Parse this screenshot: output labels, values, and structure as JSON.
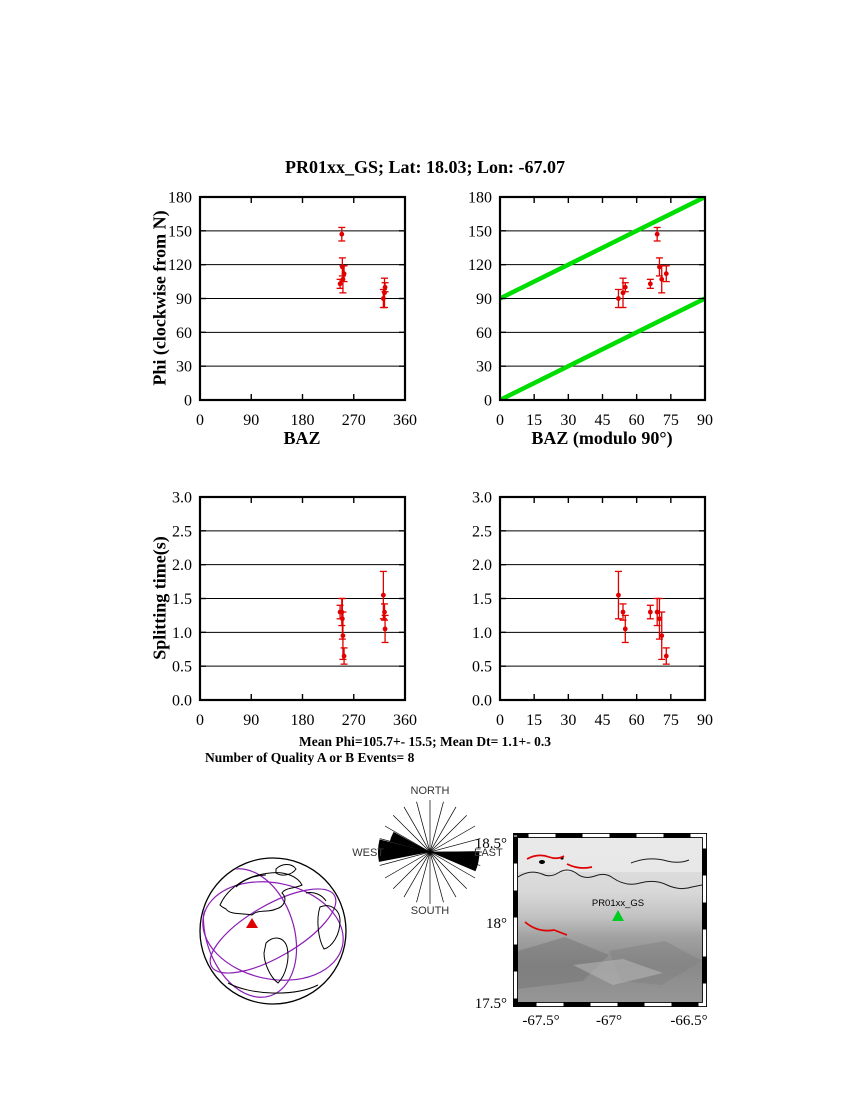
{
  "title": "PR01xx_GS; Lat: 18.03; Lon: -67.07",
  "stats": {
    "line1": "Mean Phi=105.7+- 15.5; Mean Dt= 1.1+- 0.3",
    "line2": "Number of Quality A or B Events= 8"
  },
  "colors": {
    "data_points": "#e00000",
    "reference_line": "#00dd00",
    "station_marker": "#00cc22",
    "plate_boundary": "#8a1fb4"
  },
  "chart_data": {
    "type": "scatter",
    "station": "PR01xx_GS",
    "lat": "18.03",
    "lon": "-67.07",
    "events": [
      {
        "baz": 249,
        "phi": 147,
        "phi_err": 6,
        "dt": 1.3,
        "dt_err": 0.2
      },
      {
        "baz": 250,
        "phi": 118,
        "phi_err": 8,
        "dt": 1.2,
        "dt_err": 0.3
      },
      {
        "baz": 251,
        "phi": 107,
        "phi_err": 12,
        "dt": 0.95,
        "dt_err": 0.35
      },
      {
        "baz": 253,
        "phi": 112,
        "phi_err": 7,
        "dt": 0.65,
        "dt_err": 0.12
      },
      {
        "baz": 246,
        "phi": 103,
        "phi_err": 4,
        "dt": 1.3,
        "dt_err": 0.1
      },
      {
        "baz": 322,
        "phi": 90,
        "phi_err": 8,
        "dt": 1.55,
        "dt_err": 0.35
      },
      {
        "baz": 324,
        "phi": 95,
        "phi_err": 13,
        "dt": 1.3,
        "dt_err": 0.12
      },
      {
        "baz": 325,
        "phi": 100,
        "phi_err": 4,
        "dt": 1.05,
        "dt_err": 0.2
      }
    ],
    "plots": [
      {
        "id": "phi-vs-baz",
        "xlabel": "BAZ",
        "ylabel": "Phi (clockwise from N)",
        "xlim": [
          0,
          360
        ],
        "ylim": [
          0,
          180
        ],
        "xticks": [
          0,
          90,
          180,
          270,
          360
        ],
        "xtick_labels": [
          "0",
          "90",
          "180",
          "270",
          "360"
        ],
        "yticks": [
          0,
          30,
          60,
          90,
          120,
          150,
          180
        ],
        "ytick_labels": [
          "0",
          "30",
          "60",
          "90",
          "120",
          "150",
          "180"
        ],
        "points": [
          [
            249,
            147,
            6
          ],
          [
            250,
            118,
            8
          ],
          [
            251,
            107,
            12
          ],
          [
            253,
            112,
            7
          ],
          [
            246,
            103,
            4
          ],
          [
            322,
            90,
            8
          ],
          [
            324,
            95,
            13
          ],
          [
            325,
            100,
            4
          ]
        ]
      },
      {
        "id": "phi-vs-bazmod90",
        "xlabel": "BAZ (modulo 90°)",
        "ylabel": "",
        "xlim": [
          0,
          90
        ],
        "ylim": [
          0,
          180
        ],
        "xticks": [
          0,
          15,
          30,
          45,
          60,
          75,
          90
        ],
        "xtick_labels": [
          "0",
          "15",
          "30",
          "45",
          "60",
          "75",
          "90"
        ],
        "yticks": [
          0,
          30,
          60,
          90,
          120,
          150,
          180
        ],
        "ytick_labels": [
          "0",
          "30",
          "60",
          "90",
          "120",
          "150",
          "180"
        ],
        "green_lines": [
          [
            0,
            0,
            90,
            90
          ],
          [
            0,
            90,
            90,
            180
          ]
        ],
        "points": [
          [
            69,
            147,
            6
          ],
          [
            70,
            118,
            8
          ],
          [
            71,
            107,
            12
          ],
          [
            73,
            112,
            7
          ],
          [
            66,
            103,
            4
          ],
          [
            52,
            90,
            8
          ],
          [
            54,
            95,
            13
          ],
          [
            55,
            100,
            4
          ]
        ]
      },
      {
        "id": "dt-vs-baz",
        "xlabel": "",
        "ylabel": "Splitting time(s)",
        "xlim": [
          0,
          360
        ],
        "ylim": [
          0,
          3
        ],
        "xticks": [
          0,
          90,
          180,
          270,
          360
        ],
        "xtick_labels": [
          "0",
          "90",
          "180",
          "270",
          "360"
        ],
        "yticks": [
          0,
          0.5,
          1,
          1.5,
          2,
          2.5,
          3
        ],
        "ytick_labels": [
          "0.0",
          "0.5",
          "1.0",
          "1.5",
          "2.0",
          "2.5",
          "3.0"
        ],
        "points": [
          [
            249,
            1.3,
            0.2
          ],
          [
            250,
            1.2,
            0.3
          ],
          [
            251,
            0.95,
            0.35
          ],
          [
            253,
            0.65,
            0.12
          ],
          [
            246,
            1.3,
            0.1
          ],
          [
            322,
            1.55,
            0.35
          ],
          [
            324,
            1.3,
            0.12
          ],
          [
            325,
            1.05,
            0.2
          ]
        ]
      },
      {
        "id": "dt-vs-bazmod90",
        "xlabel": "",
        "ylabel": "",
        "xlim": [
          0,
          90
        ],
        "ylim": [
          0,
          3
        ],
        "xticks": [
          0,
          15,
          30,
          45,
          60,
          75,
          90
        ],
        "xtick_labels": [
          "0",
          "15",
          "30",
          "45",
          "60",
          "75",
          "90"
        ],
        "yticks": [
          0,
          0.5,
          1,
          1.5,
          2,
          2.5,
          3
        ],
        "ytick_labels": [
          "0.0",
          "0.5",
          "1.0",
          "1.5",
          "2.0",
          "2.5",
          "3.0"
        ],
        "points": [
          [
            69,
            1.3,
            0.2
          ],
          [
            70,
            1.2,
            0.3
          ],
          [
            71,
            0.95,
            0.35
          ],
          [
            73,
            0.65,
            0.12
          ],
          [
            66,
            1.3,
            0.1
          ],
          [
            52,
            1.55,
            0.35
          ],
          [
            54,
            1.3,
            0.12
          ],
          [
            55,
            1.05,
            0.2
          ]
        ]
      }
    ],
    "rose": {
      "labels": {
        "north": "NORTH",
        "south": "SOUTH",
        "east": "EAST",
        "west": "WEST"
      },
      "spoke_step_deg": 15,
      "sectors": [
        {
          "from": 89,
          "to": 113,
          "r": 0.95
        },
        {
          "from": 259,
          "to": 284,
          "r": 1.0
        },
        {
          "from": 284,
          "to": 299,
          "r": 0.8
        }
      ]
    },
    "map": {
      "station_label": "PR01xx_GS",
      "xtick_labels": [
        "-67.5°",
        "-67°",
        "-66.5°"
      ],
      "ytick_labels": [
        "18.5°",
        "18°",
        "17.5°"
      ]
    }
  }
}
